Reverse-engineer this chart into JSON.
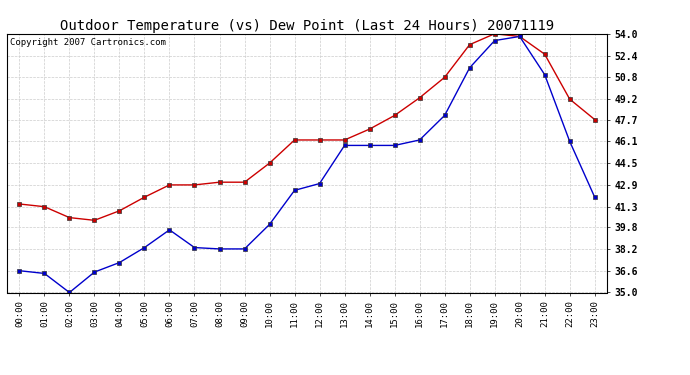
{
  "title": "Outdoor Temperature (vs) Dew Point (Last 24 Hours) 20071119",
  "copyright": "Copyright 2007 Cartronics.com",
  "x_labels": [
    "00:00",
    "01:00",
    "02:00",
    "03:00",
    "04:00",
    "05:00",
    "06:00",
    "07:00",
    "08:00",
    "09:00",
    "10:00",
    "11:00",
    "12:00",
    "13:00",
    "14:00",
    "15:00",
    "16:00",
    "17:00",
    "18:00",
    "19:00",
    "20:00",
    "21:00",
    "22:00",
    "23:00"
  ],
  "temp_red": [
    41.5,
    41.3,
    40.5,
    40.3,
    41.0,
    42.0,
    42.9,
    42.9,
    43.1,
    43.1,
    44.5,
    46.2,
    46.2,
    46.2,
    47.0,
    48.0,
    49.3,
    50.8,
    53.2,
    54.0,
    53.8,
    52.5,
    49.2,
    47.7
  ],
  "dew_blue": [
    36.6,
    36.4,
    35.0,
    36.5,
    37.2,
    38.3,
    39.6,
    38.3,
    38.2,
    38.2,
    40.0,
    42.5,
    43.0,
    45.8,
    45.8,
    45.8,
    46.2,
    48.0,
    51.5,
    53.5,
    53.8,
    51.0,
    46.1,
    42.0
  ],
  "ylim_min": 35.0,
  "ylim_max": 54.0,
  "yticks": [
    35.0,
    36.6,
    38.2,
    39.8,
    41.3,
    42.9,
    44.5,
    46.1,
    47.7,
    49.2,
    50.8,
    52.4,
    54.0
  ],
  "bg_color": "#ffffff",
  "plot_bg_color": "#ffffff",
  "grid_color": "#cccccc",
  "red_color": "#cc0000",
  "blue_color": "#0000cc",
  "title_fontsize": 10,
  "copyright_fontsize": 6.5,
  "tick_fontsize": 6.5,
  "ytick_fontsize": 7
}
